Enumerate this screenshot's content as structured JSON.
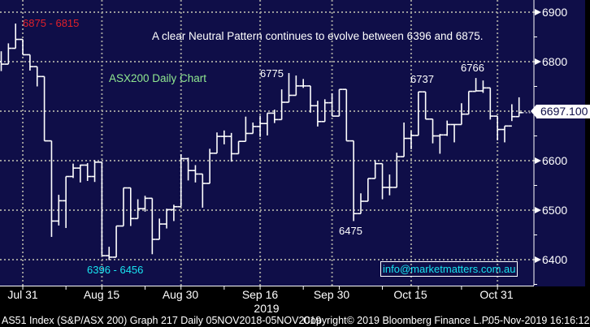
{
  "chart_data": {
    "type": "ohlc",
    "title": "ASX200 Daily Chart",
    "annotation": "A clear Neutral Pattern continues to evolve between 6396 and 6875.",
    "ylim": [
      6335,
      6925
    ],
    "yticks": [
      6400,
      6500,
      6600,
      6700,
      6800,
      6900
    ],
    "yticks_labels": [
      "6400",
      "6500",
      "6600",
      "6700",
      "6800",
      "6900"
    ],
    "xticks": [
      {
        "label": "Jul 31",
        "index": 3
      },
      {
        "label": "Aug 15",
        "index": 14
      },
      {
        "label": "Aug 30",
        "index": 25
      },
      {
        "label": "Sep 16",
        "index": 36
      },
      {
        "label": "Sep 30",
        "index": 46
      },
      {
        "label": "Oct 15",
        "index": 57
      },
      {
        "label": "Oct 31",
        "index": 69
      }
    ],
    "year_label": "2019",
    "grid": true,
    "last_price": "6697.100",
    "price_labels": [
      {
        "text": "6875 - 6815",
        "color": "#e0202a",
        "kind": "resistance"
      },
      {
        "text": "6396 - 6456",
        "color": "#18e4f0",
        "kind": "support"
      },
      {
        "text": "6775",
        "color": "#ffffff",
        "kind": "high"
      },
      {
        "text": "6737",
        "color": "#ffffff",
        "kind": "high"
      },
      {
        "text": "6766",
        "color": "#ffffff",
        "kind": "high"
      },
      {
        "text": "6475",
        "color": "#ffffff",
        "kind": "low"
      }
    ],
    "bars": [
      [
        6800,
        6821,
        6781,
        6795
      ],
      [
        6795,
        6837,
        6795,
        6827
      ],
      [
        6827,
        6877,
        6827,
        6845
      ],
      [
        6845,
        6845,
        6814,
        6814
      ],
      [
        6814,
        6814,
        6782,
        6790
      ],
      [
        6790,
        6790,
        6750,
        6770
      ],
      [
        6770,
        6770,
        6640,
        6640
      ],
      [
        6640,
        6640,
        6446,
        6478
      ],
      [
        6478,
        6531,
        6469,
        6519
      ],
      [
        6519,
        6568,
        6464,
        6568
      ],
      [
        6568,
        6594,
        6565,
        6585
      ],
      [
        6585,
        6592,
        6556,
        6591
      ],
      [
        6591,
        6595,
        6559,
        6568
      ],
      [
        6568,
        6601,
        6557,
        6597
      ],
      [
        6597,
        6597,
        6408,
        6408
      ],
      [
        6408,
        6426,
        6399,
        6405
      ],
      [
        6405,
        6468,
        6405,
        6468
      ],
      [
        6468,
        6545,
        6468,
        6545
      ],
      [
        6545,
        6545,
        6468,
        6483
      ],
      [
        6483,
        6522,
        6483,
        6503
      ],
      [
        6503,
        6529,
        6497,
        6524
      ],
      [
        6524,
        6524,
        6411,
        6441
      ],
      [
        6441,
        6483,
        6441,
        6472
      ],
      [
        6472,
        6503,
        6463,
        6501
      ],
      [
        6501,
        6511,
        6478,
        6507
      ],
      [
        6507,
        6613,
        6507,
        6604
      ],
      [
        6604,
        6606,
        6560,
        6580
      ],
      [
        6580,
        6591,
        6556,
        6573
      ],
      [
        6573,
        6573,
        6505,
        6554
      ],
      [
        6554,
        6624,
        6554,
        6615
      ],
      [
        6615,
        6657,
        6615,
        6649
      ],
      [
        6649,
        6661,
        6633,
        6649
      ],
      [
        6649,
        6656,
        6598,
        6614
      ],
      [
        6614,
        6639,
        6614,
        6639
      ],
      [
        6639,
        6689,
        6639,
        6655
      ],
      [
        6655,
        6677,
        6655,
        6669
      ],
      [
        6669,
        6691,
        6648,
        6675
      ],
      [
        6675,
        6696,
        6651,
        6696
      ],
      [
        6696,
        6703,
        6676,
        6683
      ],
      [
        6683,
        6744,
        6683,
        6718
      ],
      [
        6718,
        6777,
        6718,
        6732
      ],
      [
        6732,
        6772,
        6732,
        6751
      ],
      [
        6751,
        6765,
        6747,
        6751
      ],
      [
        6751,
        6751,
        6697,
        6711
      ],
      [
        6711,
        6721,
        6669,
        6679
      ],
      [
        6679,
        6724,
        6679,
        6717
      ],
      [
        6717,
        6736,
        6690,
        6690
      ],
      [
        6690,
        6744,
        6690,
        6744
      ],
      [
        6744,
        6744,
        6640,
        6640
      ],
      [
        6640,
        6640,
        6478,
        6493
      ],
      [
        6493,
        6534,
        6493,
        6518
      ],
      [
        6518,
        6564,
        6518,
        6564
      ],
      [
        6564,
        6601,
        6564,
        6594
      ],
      [
        6594,
        6594,
        6522,
        6546
      ],
      [
        6546,
        6572,
        6530,
        6546
      ],
      [
        6546,
        6616,
        6546,
        6608
      ],
      [
        6608,
        6677,
        6608,
        6645
      ],
      [
        6645,
        6660,
        6623,
        6651
      ],
      [
        6651,
        6739,
        6651,
        6739
      ],
      [
        6739,
        6739,
        6684,
        6684
      ],
      [
        6684,
        6684,
        6635,
        6650
      ],
      [
        6650,
        6654,
        6614,
        6652
      ],
      [
        6652,
        6681,
        6650,
        6673
      ],
      [
        6673,
        6673,
        6637,
        6673
      ],
      [
        6673,
        6716,
        6673,
        6694
      ],
      [
        6694,
        6740,
        6694,
        6740
      ],
      [
        6740,
        6767,
        6740,
        6741
      ],
      [
        6741,
        6762,
        6737,
        6747
      ],
      [
        6747,
        6747,
        6683,
        6690
      ],
      [
        6690,
        6690,
        6641,
        6663
      ],
      [
        6663,
        6670,
        6637,
        6670
      ],
      [
        6670,
        6714,
        6680,
        6689
      ],
      [
        6689,
        6728,
        6689,
        6697
      ]
    ]
  },
  "watermark_email": "info@marketmatters.com.au",
  "footer": {
    "left": "AS51 Index (S&P/ASX 200) Graph 217  Daily 05NOV2018-05NOV2019",
    "copyright": "Copyright© 2019 Bloomberg Finance L.P.",
    "timestamp": "05-Nov-2019 16:16:12"
  },
  "colors": {
    "background": "#0f0e48",
    "bars": "#ffffff",
    "grid": "#9a9a9a",
    "title": "#90e890"
  }
}
